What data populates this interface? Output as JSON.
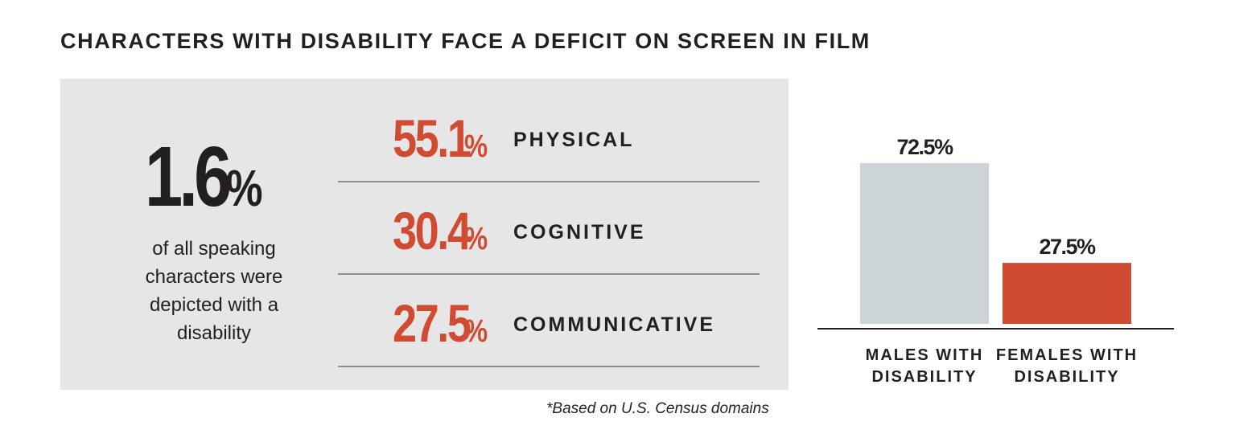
{
  "title": "CHARACTERS WITH DISABILITY FACE A DEFICIT ON SCREEN IN FILM",
  "summary": {
    "value": "1.6",
    "unit": "%",
    "description": "of all speaking characters were depicted with a disability"
  },
  "breakdown": [
    {
      "value": "55.1",
      "unit": "%",
      "label": "PHYSICAL"
    },
    {
      "value": "30.4",
      "unit": "%",
      "label": "COGNITIVE"
    },
    {
      "value": "27.5",
      "unit": "%",
      "label": "COMMUNICATIVE"
    }
  ],
  "footnote": "*Based on U.S. Census domains",
  "colors": {
    "accent": "#cf4c33",
    "panel": "#e6e6e7",
    "male_bar": "#ccd4d7",
    "text": "#231f20"
  },
  "chart_data": {
    "type": "bar",
    "categories": [
      "MALES WITH DISABILITY",
      "FEMALES WITH DISABILITY"
    ],
    "category_lines": [
      [
        "MALES WITH",
        "DISABILITY"
      ],
      [
        "FEMALES WITH",
        "DISABILITY"
      ]
    ],
    "values": [
      72.5,
      27.5
    ],
    "value_labels": [
      "72.5%",
      "27.5%"
    ],
    "bar_colors": [
      "#ccd4d7",
      "#cf4c33"
    ],
    "ylim": [
      0,
      100
    ]
  }
}
